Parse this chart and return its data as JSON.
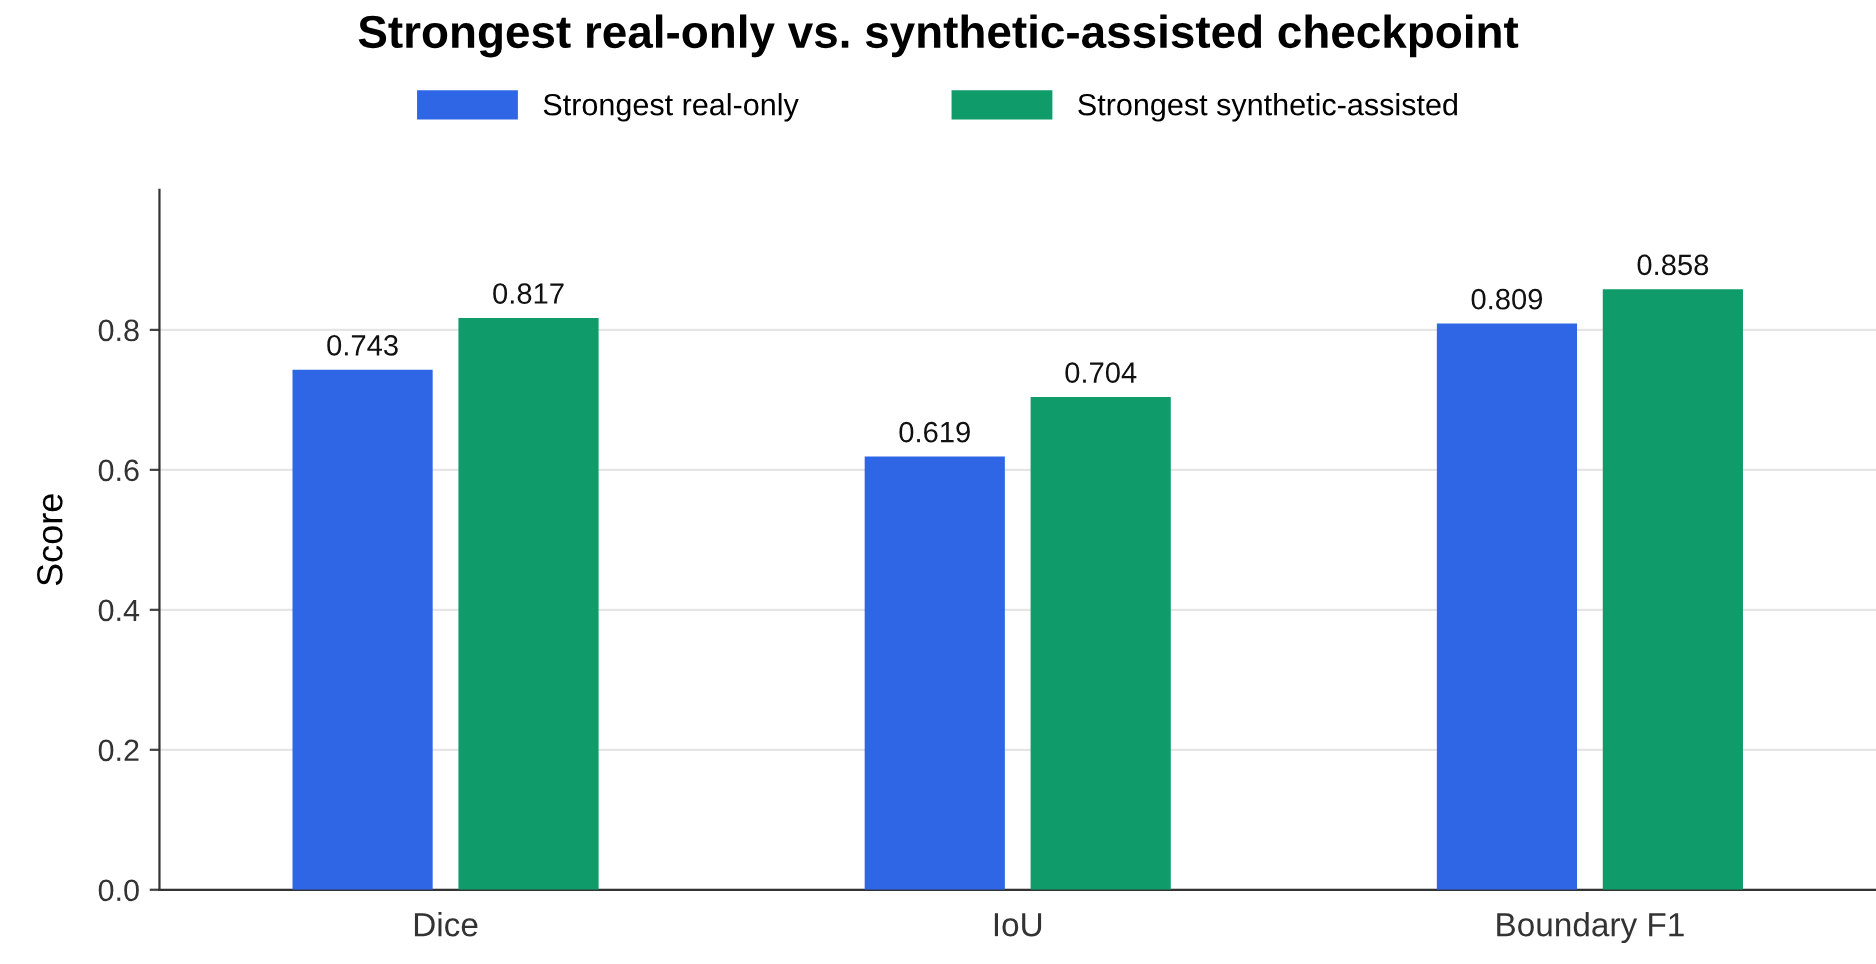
{
  "chart_data": {
    "type": "bar",
    "title": "Strongest real-only vs. synthetic-assisted checkpoint",
    "ylabel": "Score",
    "categories": [
      "Dice",
      "IoU",
      "Boundary F1"
    ],
    "series": [
      {
        "name": "Strongest real-only",
        "color": "#2f66e6",
        "values": [
          0.743,
          0.619,
          0.809
        ]
      },
      {
        "name": "Strongest synthetic-assisted",
        "color": "#0f9b6a",
        "values": [
          0.817,
          0.704,
          0.858
        ]
      }
    ],
    "ylim": [
      0,
      1.0
    ],
    "yticks": [
      {
        "value": 0,
        "label": "0.0"
      },
      0.2,
      0.4,
      0.6,
      0.8
    ],
    "grid": "y",
    "legend": "top",
    "data_labels": true
  }
}
